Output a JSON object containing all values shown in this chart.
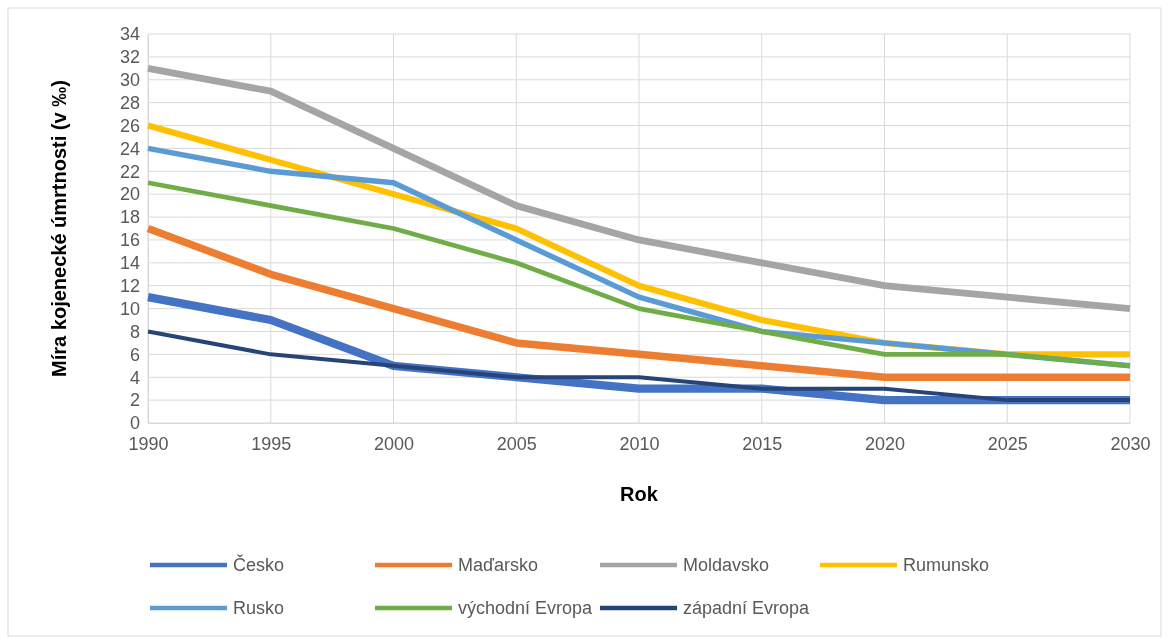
{
  "chart_data": {
    "type": "line",
    "xlabel": "Rok",
    "ylabel": "Míra kojenecké úmrtnosti (v ‰)",
    "x": [
      1990,
      1995,
      2000,
      2005,
      2010,
      2015,
      2020,
      2025,
      2030
    ],
    "xlim": [
      1990,
      2030
    ],
    "xticks": [
      1990,
      1995,
      2000,
      2005,
      2010,
      2015,
      2020,
      2025,
      2030
    ],
    "ylim": [
      0,
      34
    ],
    "yticks": [
      0,
      2,
      4,
      6,
      8,
      10,
      12,
      14,
      16,
      18,
      20,
      22,
      24,
      26,
      28,
      30,
      32,
      34
    ],
    "grid": true,
    "legend": "bottom",
    "marker": "none",
    "line_style": "solid",
    "series": [
      {
        "name": "Česko",
        "color": "#4472c4",
        "values": [
          11,
          9,
          5,
          4,
          3,
          3,
          2,
          2,
          2
        ]
      },
      {
        "name": "Maďarsko",
        "color": "#ed7d31",
        "values": [
          17,
          13,
          10,
          7,
          6,
          5,
          4,
          4,
          4
        ]
      },
      {
        "name": "Moldavsko",
        "color": "#a5a5a5",
        "values": [
          31,
          29,
          24,
          19,
          16,
          14,
          12,
          11,
          10
        ]
      },
      {
        "name": "Rumunsko",
        "color": "#ffc000",
        "values": [
          26,
          23,
          20,
          17,
          12,
          9,
          7,
          6,
          6
        ]
      },
      {
        "name": "Rusko",
        "color": "#5b9bd5",
        "values": [
          24,
          22,
          21,
          16,
          11,
          8,
          7,
          6,
          5
        ]
      },
      {
        "name": "východní Evropa",
        "color": "#70ad47",
        "values": [
          21,
          19,
          17,
          14,
          10,
          8,
          6,
          6,
          5
        ]
      },
      {
        "name": "západní Evropa",
        "color": "#264478",
        "values": [
          8,
          6,
          5,
          4,
          4,
          3,
          3,
          2,
          2
        ]
      }
    ]
  }
}
